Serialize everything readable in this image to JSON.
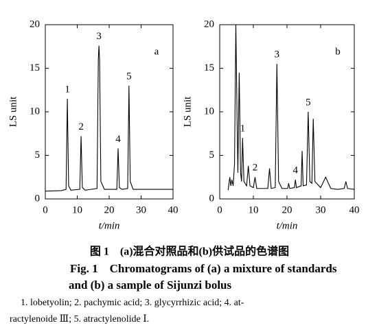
{
  "chart_data": [
    {
      "type": "line",
      "panel": "a",
      "xlabel": "t/min",
      "ylabel": "LS unit",
      "xlim": [
        0,
        40
      ],
      "ylim": [
        0,
        20
      ],
      "xticks": [
        0,
        10,
        20,
        30,
        40
      ],
      "yticks": [
        0,
        5,
        10,
        15,
        20
      ],
      "series": [
        {
          "color": "#000000",
          "x": [
            0,
            5,
            6.5,
            6.9,
            7.3,
            8,
            10.8,
            11.2,
            11.6,
            12.5,
            16.2,
            16.6,
            16.8,
            17.0,
            17.4,
            18.5,
            22.4,
            22.8,
            23.2,
            24,
            25.8,
            26.2,
            26.6,
            27.5,
            40
          ],
          "values": [
            0.9,
            0.95,
            1.1,
            11.5,
            1.5,
            1.0,
            1.1,
            7.2,
            1.3,
            1.0,
            1.2,
            16,
            17.6,
            16,
            2.0,
            1.1,
            1.1,
            5.8,
            1.3,
            1.1,
            1.2,
            13,
            2,
            1.1,
            1.1
          ]
        }
      ],
      "peaks": [
        {
          "label": "1",
          "x": 6.9,
          "y": 11.5
        },
        {
          "label": "2",
          "x": 11.2,
          "y": 7.2
        },
        {
          "label": "3",
          "x": 16.8,
          "y": 17.6
        },
        {
          "label": "4",
          "x": 22.8,
          "y": 5.8
        },
        {
          "label": "5",
          "x": 26.2,
          "y": 13
        }
      ]
    },
    {
      "type": "line",
      "panel": "b",
      "xlabel": "t/min",
      "ylabel": "LS unit",
      "xlim": [
        0,
        40
      ],
      "ylim": [
        0,
        20
      ],
      "xticks": [
        0,
        10,
        20,
        30,
        40
      ],
      "yticks": [
        0,
        5,
        10,
        15,
        20
      ],
      "series": [
        {
          "color": "#000000",
          "x": [
            2.5,
            3,
            3.3,
            3.6,
            4,
            4.4,
            4.8,
            5.2,
            5.4,
            5.8,
            6.2,
            6.5,
            6.8,
            7.2,
            8,
            8.5,
            9,
            10,
            10.5,
            11,
            14.3,
            14.8,
            15.3,
            16.5,
            17,
            17.5,
            18.5,
            20.2,
            20.5,
            20.8,
            22.2,
            22.5,
            22.8,
            24.2,
            24.5,
            24.8,
            25.8,
            26.3,
            26.8,
            27.4,
            27.8,
            28.3,
            30,
            31.5,
            33,
            35,
            37,
            37.5,
            38,
            40
          ],
          "values": [
            1.0,
            2.5,
            1.5,
            2.2,
            1.5,
            4,
            20,
            8,
            3,
            14.5,
            3,
            2,
            7,
            2,
            1.5,
            3.8,
            1.5,
            1.3,
            2.5,
            1.2,
            1.2,
            3.5,
            1.2,
            1.3,
            15.5,
            2,
            1.2,
            1.2,
            1.8,
            1.2,
            1.3,
            2.2,
            1.3,
            1.5,
            5.5,
            1.5,
            1.6,
            10,
            2,
            1.8,
            9.2,
            2,
            1.3,
            2.5,
            1.2,
            1.1,
            1.2,
            2,
            1.2,
            1.1
          ]
        }
      ],
      "peaks": [
        {
          "label": "1",
          "x": 6.8,
          "y": 7
        },
        {
          "label": "2",
          "x": 10.5,
          "y": 2.5
        },
        {
          "label": "3",
          "x": 17,
          "y": 15.5
        },
        {
          "label": "4",
          "x": 22.5,
          "y": 2.2
        },
        {
          "label": "5",
          "x": 26.3,
          "y": 10
        }
      ]
    }
  ],
  "caption": {
    "title_cn": "图 1　(a)混合对照品和(b)供试品的色谱图",
    "title_en_1": "Fig. 1　Chromatograms of (a) a mixture of standards",
    "title_en_2": "and (b) a sample of Sijunzi bolus",
    "note_1": "1. lobetyolin; 2. pachymic acid; 3. glycyrrhizic acid; 4. at-",
    "note_2": "ractylenoide Ⅲ; 5. atractylenolide Ⅰ."
  }
}
